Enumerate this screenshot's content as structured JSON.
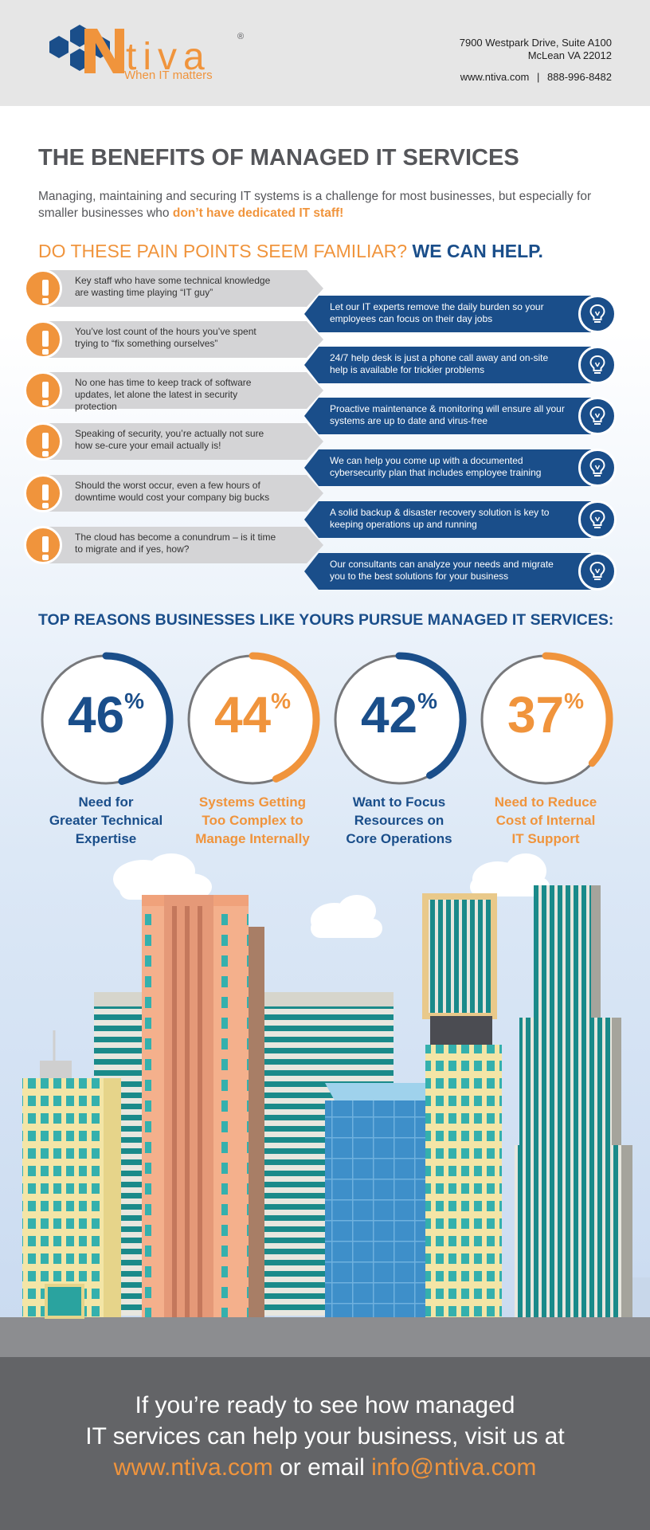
{
  "header": {
    "logo_word": "tiva",
    "logo_reg": "®",
    "tagline": "When IT matters",
    "address_line1": "7900 Westpark Drive, Suite A100",
    "address_line2": "McLean VA 22012",
    "website": "www.ntiva.com",
    "separator": "|",
    "phone": "888-996-8482"
  },
  "title": "THE BENEFITS OF MANAGED IT SERVICES",
  "intro": {
    "text": "Managing, maintaining and securing IT systems is a challenge for most businesses, but especially for smaller businesses who",
    "highlight": "don’t have dedicated IT staff!"
  },
  "pain_heading": {
    "question": "DO THESE PAIN POINTS SEEM FAMILIAR?",
    "answer": "WE CAN HELP."
  },
  "pain_points": [
    "Key staff who have some technical knowledge are wasting time playing “IT guy”",
    "You’ve lost count of the hours you’ve spent trying to “fix something ourselves”",
    "No one has time to keep track of software updates, let alone the latest in security protection",
    "Speaking of security, you’re actually not sure how se-cure your email actually is!",
    "Should the worst occur, even a few hours of downtime would cost your company big bucks",
    "The cloud has become a conundrum – is it time to migrate and if yes, how?"
  ],
  "solutions": [
    "Let our IT experts remove the daily burden so your employees can focus on their day jobs",
    "24/7 help desk is just a phone call away and on-site help is available for trickier problems",
    "Proactive maintenance & monitoring will ensure all your systems are up to date and virus-free",
    "We can help you come up with a documented cybersecurity plan that includes employee training",
    "A solid backup & disaster recovery solution is key to keeping operations up and running",
    "Our consultants can analyze your needs and migrate you to the best solutions for your business"
  ],
  "reasons_title": "TOP REASONS BUSINESSES LIKE YOURS PURSUE MANAGED IT SERVICES:",
  "stats": [
    {
      "value": 46,
      "unit": "%",
      "label1": "Need for",
      "label2": "Greater Technical",
      "label3": "Expertise",
      "color": "#1a4e8a"
    },
    {
      "value": 44,
      "unit": "%",
      "label1": "Systems Getting",
      "label2": "Too Complex to",
      "label3": "Manage Internally",
      "color": "#f0943c"
    },
    {
      "value": 42,
      "unit": "%",
      "label1": "Want to Focus",
      "label2": "Resources on",
      "label3": "Core Operations",
      "color": "#1a4e8a"
    },
    {
      "value": 37,
      "unit": "%",
      "label1": "Need to Reduce",
      "label2": "Cost of Internal",
      "label3": "IT Support",
      "color": "#f0943c"
    }
  ],
  "footer": {
    "line1": "If you’re ready to see how managed",
    "line2": "IT services can help your business, visit us at",
    "url": "www.ntiva.com",
    "mid": "or email",
    "email": "info@ntiva.com"
  },
  "colors": {
    "brand_orange": "#f0943c",
    "brand_blue": "#1a4e8a",
    "gray_text": "#55565a"
  },
  "icons": {
    "pain": "exclamation-icon",
    "solution": "lightbulb-icon"
  }
}
